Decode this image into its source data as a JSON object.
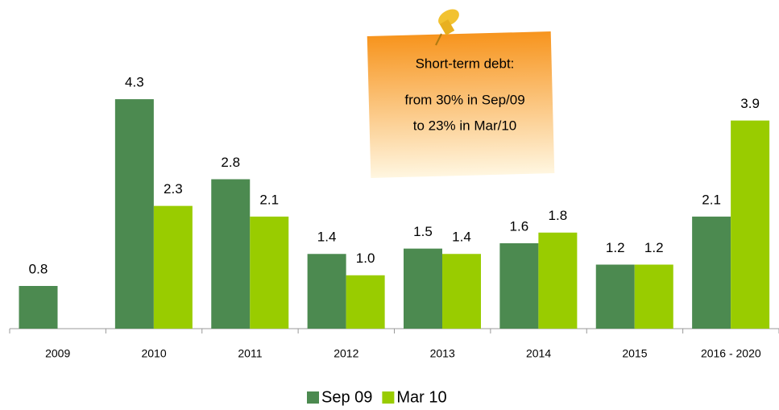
{
  "chart_data": {
    "type": "bar",
    "categories": [
      "2009",
      "2010",
      "2011",
      "2012",
      "2013",
      "2014",
      "2015",
      "2016 - 2020"
    ],
    "series": [
      {
        "name": "Sep 09",
        "color": "#4c8a50",
        "values": [
          0.8,
          4.3,
          2.8,
          1.4,
          1.5,
          1.6,
          1.2,
          2.1
        ],
        "value_labels": [
          "0.8",
          "4.3",
          "2.8",
          "1.4",
          "1.5",
          "1.6",
          "1.2",
          "2.1"
        ]
      },
      {
        "name": "Mar 10",
        "color": "#99cc00",
        "values": [
          null,
          2.3,
          2.1,
          1.0,
          1.4,
          1.8,
          1.2,
          3.9
        ],
        "value_labels": [
          null,
          "2.3",
          "2.1",
          "1.0",
          "1.4",
          "1.8",
          "1.2",
          "3.9"
        ]
      }
    ],
    "ylim": [
      0,
      6
    ],
    "annotation": [
      "Short-term debt:",
      "from 30% in Sep/09",
      "to 23% in Mar/10"
    ]
  }
}
